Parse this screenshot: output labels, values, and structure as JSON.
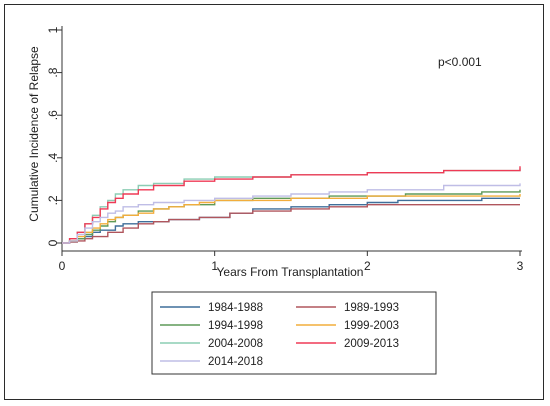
{
  "chart_data": {
    "type": "line",
    "step": true,
    "title": "",
    "xlabel": "Years From Transplantation",
    "ylabel": "Cumulative Incidence of Relapse",
    "xlim": [
      0,
      3
    ],
    "ylim": [
      0,
      1
    ],
    "x_ticks": [
      {
        "value": 0,
        "label": "0"
      },
      {
        "value": 1,
        "label": "1"
      },
      {
        "value": 2,
        "label": "2"
      },
      {
        "value": 3,
        "label": "3"
      }
    ],
    "y_ticks": [
      {
        "value": 0,
        "label": "0"
      },
      {
        "value": 0.2,
        "label": ".2"
      },
      {
        "value": 0.4,
        "label": ".4"
      },
      {
        "value": 0.6,
        "label": ".6"
      },
      {
        "value": 0.8,
        "label": ".8"
      },
      {
        "value": 1,
        "label": "1"
      }
    ],
    "grid": false,
    "annotation": "p<0.001",
    "legend_position": "bottom",
    "series": [
      {
        "name": "1984-1988",
        "color": "#3f6f9a",
        "x": [
          0,
          0.05,
          0.1,
          0.15,
          0.2,
          0.25,
          0.3,
          0.35,
          0.4,
          0.5,
          0.6,
          0.7,
          0.8,
          0.9,
          1.0,
          1.1,
          1.25,
          1.5,
          1.75,
          2.0,
          2.2,
          2.5,
          2.75,
          3.0
        ],
        "y": [
          0,
          0.005,
          0.02,
          0.03,
          0.05,
          0.06,
          0.06,
          0.08,
          0.09,
          0.1,
          0.1,
          0.11,
          0.11,
          0.12,
          0.12,
          0.14,
          0.16,
          0.17,
          0.18,
          0.19,
          0.2,
          0.2,
          0.21,
          0.21
        ]
      },
      {
        "name": "1989-1993",
        "color": "#b0565d",
        "x": [
          0,
          0.05,
          0.1,
          0.15,
          0.2,
          0.3,
          0.4,
          0.5,
          0.6,
          0.7,
          0.8,
          0.9,
          1.0,
          1.1,
          1.25,
          1.5,
          1.75,
          2.0,
          2.5,
          3.0
        ],
        "y": [
          0,
          0.005,
          0.01,
          0.02,
          0.03,
          0.05,
          0.07,
          0.09,
          0.1,
          0.11,
          0.11,
          0.12,
          0.12,
          0.14,
          0.15,
          0.16,
          0.17,
          0.18,
          0.18,
          0.18
        ]
      },
      {
        "name": "1994-1998",
        "color": "#5f9a58",
        "x": [
          0,
          0.05,
          0.1,
          0.15,
          0.2,
          0.25,
          0.3,
          0.35,
          0.4,
          0.5,
          0.6,
          0.7,
          0.8,
          1.0,
          1.25,
          1.5,
          1.75,
          2.0,
          2.25,
          2.5,
          2.75,
          3.0
        ],
        "y": [
          0,
          0.01,
          0.02,
          0.04,
          0.06,
          0.08,
          0.1,
          0.12,
          0.13,
          0.15,
          0.16,
          0.17,
          0.18,
          0.2,
          0.21,
          0.21,
          0.22,
          0.22,
          0.23,
          0.23,
          0.24,
          0.25
        ]
      },
      {
        "name": "1999-2003",
        "color": "#f2ad3c",
        "x": [
          0,
          0.05,
          0.1,
          0.15,
          0.2,
          0.25,
          0.3,
          0.35,
          0.4,
          0.5,
          0.6,
          0.7,
          0.8,
          0.9,
          1.0,
          1.25,
          1.5,
          1.75,
          2.0,
          2.5,
          3.0
        ],
        "y": [
          0,
          0.01,
          0.03,
          0.05,
          0.07,
          0.09,
          0.11,
          0.12,
          0.13,
          0.14,
          0.16,
          0.17,
          0.18,
          0.19,
          0.2,
          0.2,
          0.21,
          0.21,
          0.22,
          0.22,
          0.23
        ]
      },
      {
        "name": "2004-2008",
        "color": "#8ccdb4",
        "x": [
          0,
          0.05,
          0.1,
          0.15,
          0.2,
          0.25,
          0.3,
          0.35,
          0.4,
          0.5,
          0.6,
          0.8,
          1.0,
          1.25,
          1.5,
          2.0,
          2.5,
          3.0
        ],
        "y": [
          0,
          0.02,
          0.05,
          0.09,
          0.13,
          0.17,
          0.2,
          0.23,
          0.25,
          0.27,
          0.28,
          0.3,
          0.31,
          0.31,
          0.32,
          0.33,
          0.34,
          0.35
        ]
      },
      {
        "name": "2009-2013",
        "color": "#ef3a56",
        "x": [
          0,
          0.05,
          0.1,
          0.15,
          0.2,
          0.25,
          0.3,
          0.35,
          0.4,
          0.5,
          0.6,
          0.8,
          1.0,
          1.25,
          1.5,
          2.0,
          2.5,
          3.0
        ],
        "y": [
          0,
          0.02,
          0.05,
          0.09,
          0.12,
          0.16,
          0.19,
          0.21,
          0.23,
          0.25,
          0.27,
          0.29,
          0.3,
          0.31,
          0.32,
          0.33,
          0.34,
          0.36
        ]
      },
      {
        "name": "2014-2018",
        "color": "#bfbde6",
        "x": [
          0,
          0.05,
          0.1,
          0.15,
          0.2,
          0.25,
          0.3,
          0.35,
          0.4,
          0.5,
          0.6,
          0.8,
          1.0,
          1.25,
          1.5,
          1.75,
          2.0,
          2.5,
          3.0
        ],
        "y": [
          0,
          0.01,
          0.04,
          0.07,
          0.1,
          0.12,
          0.14,
          0.15,
          0.17,
          0.18,
          0.19,
          0.2,
          0.21,
          0.22,
          0.23,
          0.24,
          0.25,
          0.27,
          0.28
        ]
      }
    ]
  }
}
